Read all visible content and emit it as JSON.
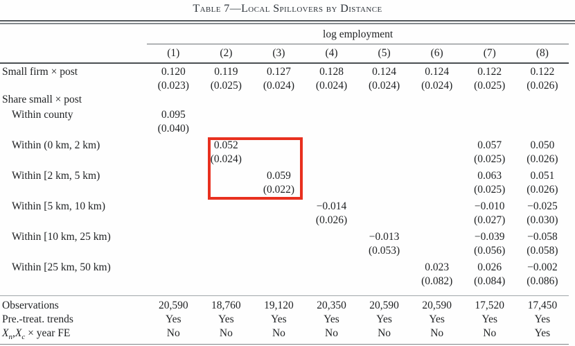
{
  "title": "Table 7—Local Spillovers by Distance",
  "table": {
    "span_header": "log employment",
    "column_headers": [
      "(1)",
      "(2)",
      "(3)",
      "(4)",
      "(5)",
      "(6)",
      "(7)",
      "(8)"
    ],
    "rows": [
      {
        "label": "Small firm × post",
        "indent": false,
        "gap": false,
        "coef": [
          "0.120",
          "0.119",
          "0.127",
          "0.128",
          "0.124",
          "0.124",
          "0.122",
          "0.122"
        ],
        "se": [
          "(0.023)",
          "(0.025)",
          "(0.024)",
          "(0.024)",
          "(0.024)",
          "(0.024)",
          "(0.025)",
          "(0.026)"
        ]
      },
      {
        "label": "Share small × post",
        "section": true
      },
      {
        "label": "Within county",
        "indent": true,
        "gap": false,
        "coef": [
          "0.095",
          "",
          "",
          "",
          "",
          "",
          "",
          ""
        ],
        "se": [
          "(0.040)",
          "",
          "",
          "",
          "",
          "",
          "",
          ""
        ]
      },
      {
        "label": "Within (0 km, 2 km)",
        "indent": true,
        "gap": true,
        "coef": [
          "",
          "0.052",
          "",
          "",
          "",
          "",
          "0.057",
          "0.050"
        ],
        "se": [
          "",
          "(0.024)",
          "",
          "",
          "",
          "",
          "(0.025)",
          "(0.026)"
        ]
      },
      {
        "label": "Within [2 km, 5 km)",
        "indent": true,
        "gap": true,
        "coef": [
          "",
          "",
          "0.059",
          "",
          "",
          "",
          "0.063",
          "0.051"
        ],
        "se": [
          "",
          "",
          "(0.022)",
          "",
          "",
          "",
          "(0.025)",
          "(0.026)"
        ]
      },
      {
        "label": "Within [5 km, 10 km)",
        "indent": true,
        "gap": true,
        "coef": [
          "",
          "",
          "",
          "−0.014",
          "",
          "",
          "−0.010",
          "−0.025"
        ],
        "se": [
          "",
          "",
          "",
          "(0.026)",
          "",
          "",
          "(0.027)",
          "(0.030)"
        ]
      },
      {
        "label": "Within [10 km, 25 km)",
        "indent": true,
        "gap": true,
        "coef": [
          "",
          "",
          "",
          "",
          "−0.013",
          "",
          "−0.039",
          "−0.058"
        ],
        "se": [
          "",
          "",
          "",
          "",
          "(0.053)",
          "",
          "(0.056)",
          "(0.058)"
        ]
      },
      {
        "label": "Within [25 km, 50 km)",
        "indent": true,
        "gap": true,
        "coef": [
          "",
          "",
          "",
          "",
          "",
          "0.023",
          "0.026",
          "−0.002"
        ],
        "se": [
          "",
          "",
          "",
          "",
          "",
          "(0.082)",
          "(0.084)",
          "(0.086)"
        ]
      }
    ],
    "footer_rows": [
      {
        "label": "Observations",
        "values": [
          "20,590",
          "18,760",
          "19,120",
          "20,350",
          "20,590",
          "20,590",
          "17,520",
          "17,450"
        ]
      },
      {
        "label": "Pre.-treat. trends",
        "values": [
          "Yes",
          "Yes",
          "Yes",
          "Yes",
          "Yes",
          "Yes",
          "Yes",
          "Yes"
        ]
      },
      {
        "label": "",
        "label_parts": {
          "var1": "X",
          "sub1": "n",
          "sep": ",",
          "var2": "X",
          "sub2": "c",
          "suffix": " × year FE"
        },
        "values": [
          "No",
          "No",
          "No",
          "No",
          "No",
          "No",
          "No",
          "Yes"
        ]
      }
    ]
  },
  "annotation": {
    "type": "highlight-box",
    "color": "#e8301f",
    "highlighted_values": [
      "0.052",
      "(0.024)",
      "0.059",
      "(0.022)"
    ]
  }
}
